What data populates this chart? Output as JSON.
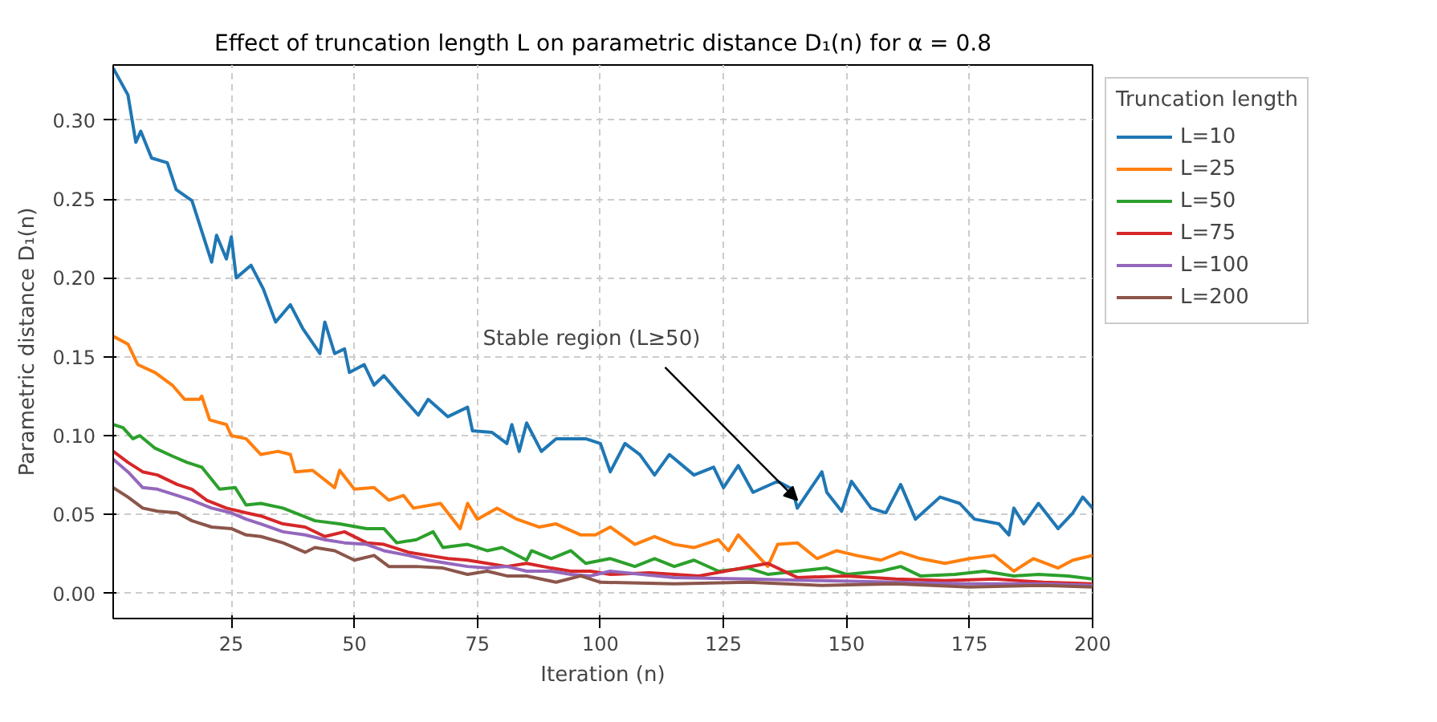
{
  "chart_data": {
    "type": "line",
    "title": "Effect of truncation length L on parametric distance D₁(n) for α = 0.8",
    "xlabel": "Iteration (n)",
    "ylabel": "Parametric distance D₁(n)",
    "legend_title": "Truncation length",
    "legend": "right",
    "grid": true,
    "xlim": [
      1,
      200
    ],
    "ylim": [
      -0.016,
      0.335
    ],
    "xticks": [
      25,
      50,
      75,
      100,
      125,
      150,
      175,
      200
    ],
    "yticks": [
      {
        "value": 0,
        "label": "0.00"
      },
      {
        "value": 0.05,
        "label": "0.05"
      },
      {
        "value": 0.1,
        "label": "0.10"
      },
      {
        "value": 0.15,
        "label": "0.15"
      },
      {
        "value": 0.2,
        "label": "0.20"
      },
      {
        "value": 0.25,
        "label": "0.25"
      },
      {
        "value": 0.3,
        "label": "0.30"
      }
    ],
    "annotations": [
      {
        "text": "Stable region (L≥50)",
        "x": 140,
        "y": 0.059
      }
    ],
    "series": [
      {
        "name": "L=10",
        "color": "#1f77b4",
        "x": [
          1,
          4,
          5.6,
          6.6,
          8.8,
          12,
          13.8,
          17,
          21,
          22,
          24,
          25,
          26,
          29,
          31.5,
          34,
          37,
          39.5,
          43,
          44,
          46,
          48,
          49,
          52,
          54,
          56,
          59,
          63,
          65,
          69,
          73,
          74,
          78,
          81,
          82,
          83.5,
          85,
          88,
          91,
          97,
          100,
          102,
          105,
          108,
          111,
          114,
          119,
          123,
          125,
          128,
          131,
          136,
          139,
          140,
          145,
          146,
          149,
          151,
          155,
          158,
          161,
          164,
          169,
          173,
          176,
          181,
          183,
          184,
          186,
          189,
          193,
          196,
          198,
          200
        ],
        "values": [
          0.333,
          0.316,
          0.286,
          0.293,
          0.276,
          0.273,
          0.256,
          0.249,
          0.21,
          0.227,
          0.212,
          0.226,
          0.2,
          0.208,
          0.193,
          0.172,
          0.183,
          0.168,
          0.152,
          0.172,
          0.152,
          0.155,
          0.14,
          0.145,
          0.132,
          0.138,
          0.127,
          0.113,
          0.123,
          0.112,
          0.118,
          0.103,
          0.102,
          0.095,
          0.107,
          0.09,
          0.108,
          0.09,
          0.098,
          0.098,
          0.095,
          0.077,
          0.095,
          0.088,
          0.075,
          0.088,
          0.075,
          0.08,
          0.067,
          0.081,
          0.064,
          0.071,
          0.066,
          0.054,
          0.077,
          0.064,
          0.052,
          0.071,
          0.054,
          0.051,
          0.069,
          0.047,
          0.061,
          0.057,
          0.047,
          0.044,
          0.037,
          0.054,
          0.044,
          0.057,
          0.041,
          0.051,
          0.061,
          0.054
        ]
      },
      {
        "name": "L=25",
        "color": "#ff7f0e",
        "x": [
          1,
          4,
          6,
          9.5,
          13,
          15.5,
          18.5,
          19,
          20.6,
          24,
          25,
          28,
          31,
          34.5,
          37,
          38,
          41.5,
          46,
          47,
          50,
          54,
          57,
          60,
          62,
          67.5,
          71.5,
          73,
          75,
          79,
          83,
          87.5,
          91,
          96,
          99,
          102,
          107,
          111,
          115,
          119,
          124,
          126,
          128,
          134,
          136,
          140,
          144,
          148,
          152,
          157,
          161,
          165,
          170,
          175,
          180,
          184,
          188,
          193,
          196,
          200
        ],
        "values": [
          0.163,
          0.158,
          0.145,
          0.14,
          0.132,
          0.123,
          0.123,
          0.125,
          0.11,
          0.107,
          0.1,
          0.098,
          0.088,
          0.09,
          0.088,
          0.077,
          0.078,
          0.067,
          0.078,
          0.066,
          0.067,
          0.059,
          0.062,
          0.054,
          0.057,
          0.041,
          0.057,
          0.047,
          0.054,
          0.047,
          0.042,
          0.044,
          0.037,
          0.037,
          0.042,
          0.031,
          0.036,
          0.031,
          0.029,
          0.034,
          0.027,
          0.037,
          0.017,
          0.031,
          0.032,
          0.022,
          0.027,
          0.024,
          0.021,
          0.026,
          0.022,
          0.019,
          0.022,
          0.024,
          0.014,
          0.022,
          0.016,
          0.021,
          0.024
        ]
      },
      {
        "name": "L=50",
        "color": "#2ca02c",
        "x": [
          1,
          3,
          5,
          6.4,
          9.5,
          13,
          16,
          19,
          22.6,
          25.8,
          28,
          31,
          35.5,
          42,
          47,
          52.5,
          56,
          58.6,
          62.6,
          66,
          68,
          73,
          77,
          80,
          85,
          86,
          90,
          94,
          97,
          102,
          107,
          111,
          115,
          119,
          124,
          130,
          134,
          140,
          146,
          150,
          157,
          161,
          165,
          172,
          178,
          184,
          189,
          195,
          200
        ],
        "values": [
          0.107,
          0.105,
          0.098,
          0.1,
          0.092,
          0.087,
          0.083,
          0.08,
          0.066,
          0.067,
          0.056,
          0.057,
          0.054,
          0.046,
          0.044,
          0.041,
          0.041,
          0.032,
          0.034,
          0.039,
          0.029,
          0.031,
          0.027,
          0.029,
          0.021,
          0.027,
          0.022,
          0.027,
          0.019,
          0.022,
          0.017,
          0.022,
          0.017,
          0.021,
          0.014,
          0.016,
          0.012,
          0.014,
          0.016,
          0.012,
          0.014,
          0.017,
          0.011,
          0.012,
          0.014,
          0.011,
          0.012,
          0.011,
          0.009
        ]
      },
      {
        "name": "L=75",
        "color": "#d62728",
        "x": [
          1,
          4,
          7,
          10,
          14,
          17,
          20,
          24,
          28,
          31,
          35.5,
          40,
          44,
          48,
          52.5,
          56,
          61,
          65,
          69,
          73,
          77,
          81,
          85,
          90,
          94,
          98,
          102,
          110,
          120,
          134,
          140,
          150,
          160,
          170,
          180,
          190,
          200
        ],
        "values": [
          0.09,
          0.083,
          0.077,
          0.075,
          0.069,
          0.066,
          0.059,
          0.054,
          0.051,
          0.049,
          0.044,
          0.042,
          0.036,
          0.039,
          0.032,
          0.031,
          0.026,
          0.024,
          0.022,
          0.021,
          0.019,
          0.017,
          0.019,
          0.016,
          0.014,
          0.014,
          0.012,
          0.013,
          0.011,
          0.019,
          0.01,
          0.011,
          0.009,
          0.008,
          0.009,
          0.007,
          0.006
        ]
      },
      {
        "name": "L=100",
        "color": "#9467bd",
        "x": [
          1,
          4,
          7,
          10,
          14,
          17,
          21,
          25,
          28,
          31,
          35.5,
          40,
          44,
          48,
          52.5,
          56,
          61,
          65,
          69,
          73,
          77,
          81,
          85,
          90,
          94,
          98,
          102,
          115,
          130,
          145,
          160,
          175,
          190,
          200
        ],
        "values": [
          0.085,
          0.077,
          0.067,
          0.066,
          0.062,
          0.059,
          0.054,
          0.051,
          0.047,
          0.044,
          0.039,
          0.037,
          0.034,
          0.032,
          0.031,
          0.027,
          0.024,
          0.021,
          0.019,
          0.017,
          0.016,
          0.017,
          0.014,
          0.014,
          0.012,
          0.011,
          0.014,
          0.01,
          0.009,
          0.008,
          0.007,
          0.006,
          0.006,
          0.005
        ]
      },
      {
        "name": "L=200",
        "color": "#8c564b",
        "x": [
          1,
          4,
          7,
          10,
          14,
          17,
          21,
          25,
          28,
          31,
          35.5,
          40,
          42,
          46,
          50,
          54,
          57,
          62.6,
          68,
          73,
          77,
          81,
          85,
          91,
          96,
          100,
          115,
          130,
          145,
          160,
          175,
          190,
          200
        ],
        "values": [
          0.067,
          0.061,
          0.054,
          0.052,
          0.051,
          0.046,
          0.042,
          0.041,
          0.037,
          0.036,
          0.032,
          0.026,
          0.029,
          0.027,
          0.021,
          0.024,
          0.017,
          0.017,
          0.016,
          0.012,
          0.014,
          0.011,
          0.011,
          0.007,
          0.011,
          0.007,
          0.006,
          0.007,
          0.005,
          0.006,
          0.004,
          0.005,
          0.004
        ]
      }
    ]
  }
}
